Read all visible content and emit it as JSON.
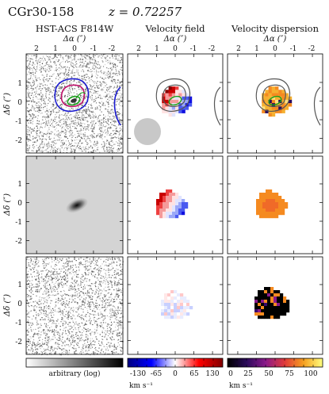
{
  "header": {
    "object": "CGr30-158",
    "redshift": "z = 0.72257"
  },
  "columns": [
    {
      "title": "HST-ACS F814W",
      "xlabel": "Δα (″)"
    },
    {
      "title": "Velocity field",
      "xlabel": "Δα (″)"
    },
    {
      "title": "Velocity dispersion",
      "xlabel": "Δα (″)"
    }
  ],
  "ylabel": "Δδ (″)",
  "x_ticks": [
    "2",
    "1",
    "0",
    "-1",
    "-2"
  ],
  "y_ticks": [
    "1",
    "0",
    "-1",
    "-2"
  ],
  "colorbars": [
    {
      "label": "arbitrary (log)",
      "ticks": [],
      "unit": "",
      "colors": [
        "#ffffff",
        "#000000"
      ]
    },
    {
      "label": "",
      "ticks": [
        "-130",
        "-65",
        "0",
        "65",
        "130"
      ],
      "unit": "km s⁻¹",
      "colors": [
        "#000080",
        "#0000ff",
        "#ffffff",
        "#ff0000",
        "#800000"
      ]
    },
    {
      "label": "",
      "ticks": [
        "0",
        "25",
        "50",
        "75",
        "100"
      ],
      "unit": "km s⁻¹",
      "colors": [
        "#000000",
        "#2a0a5a",
        "#8a1a8a",
        "#e03a3a",
        "#f5a020",
        "#ffff80"
      ]
    }
  ]
}
